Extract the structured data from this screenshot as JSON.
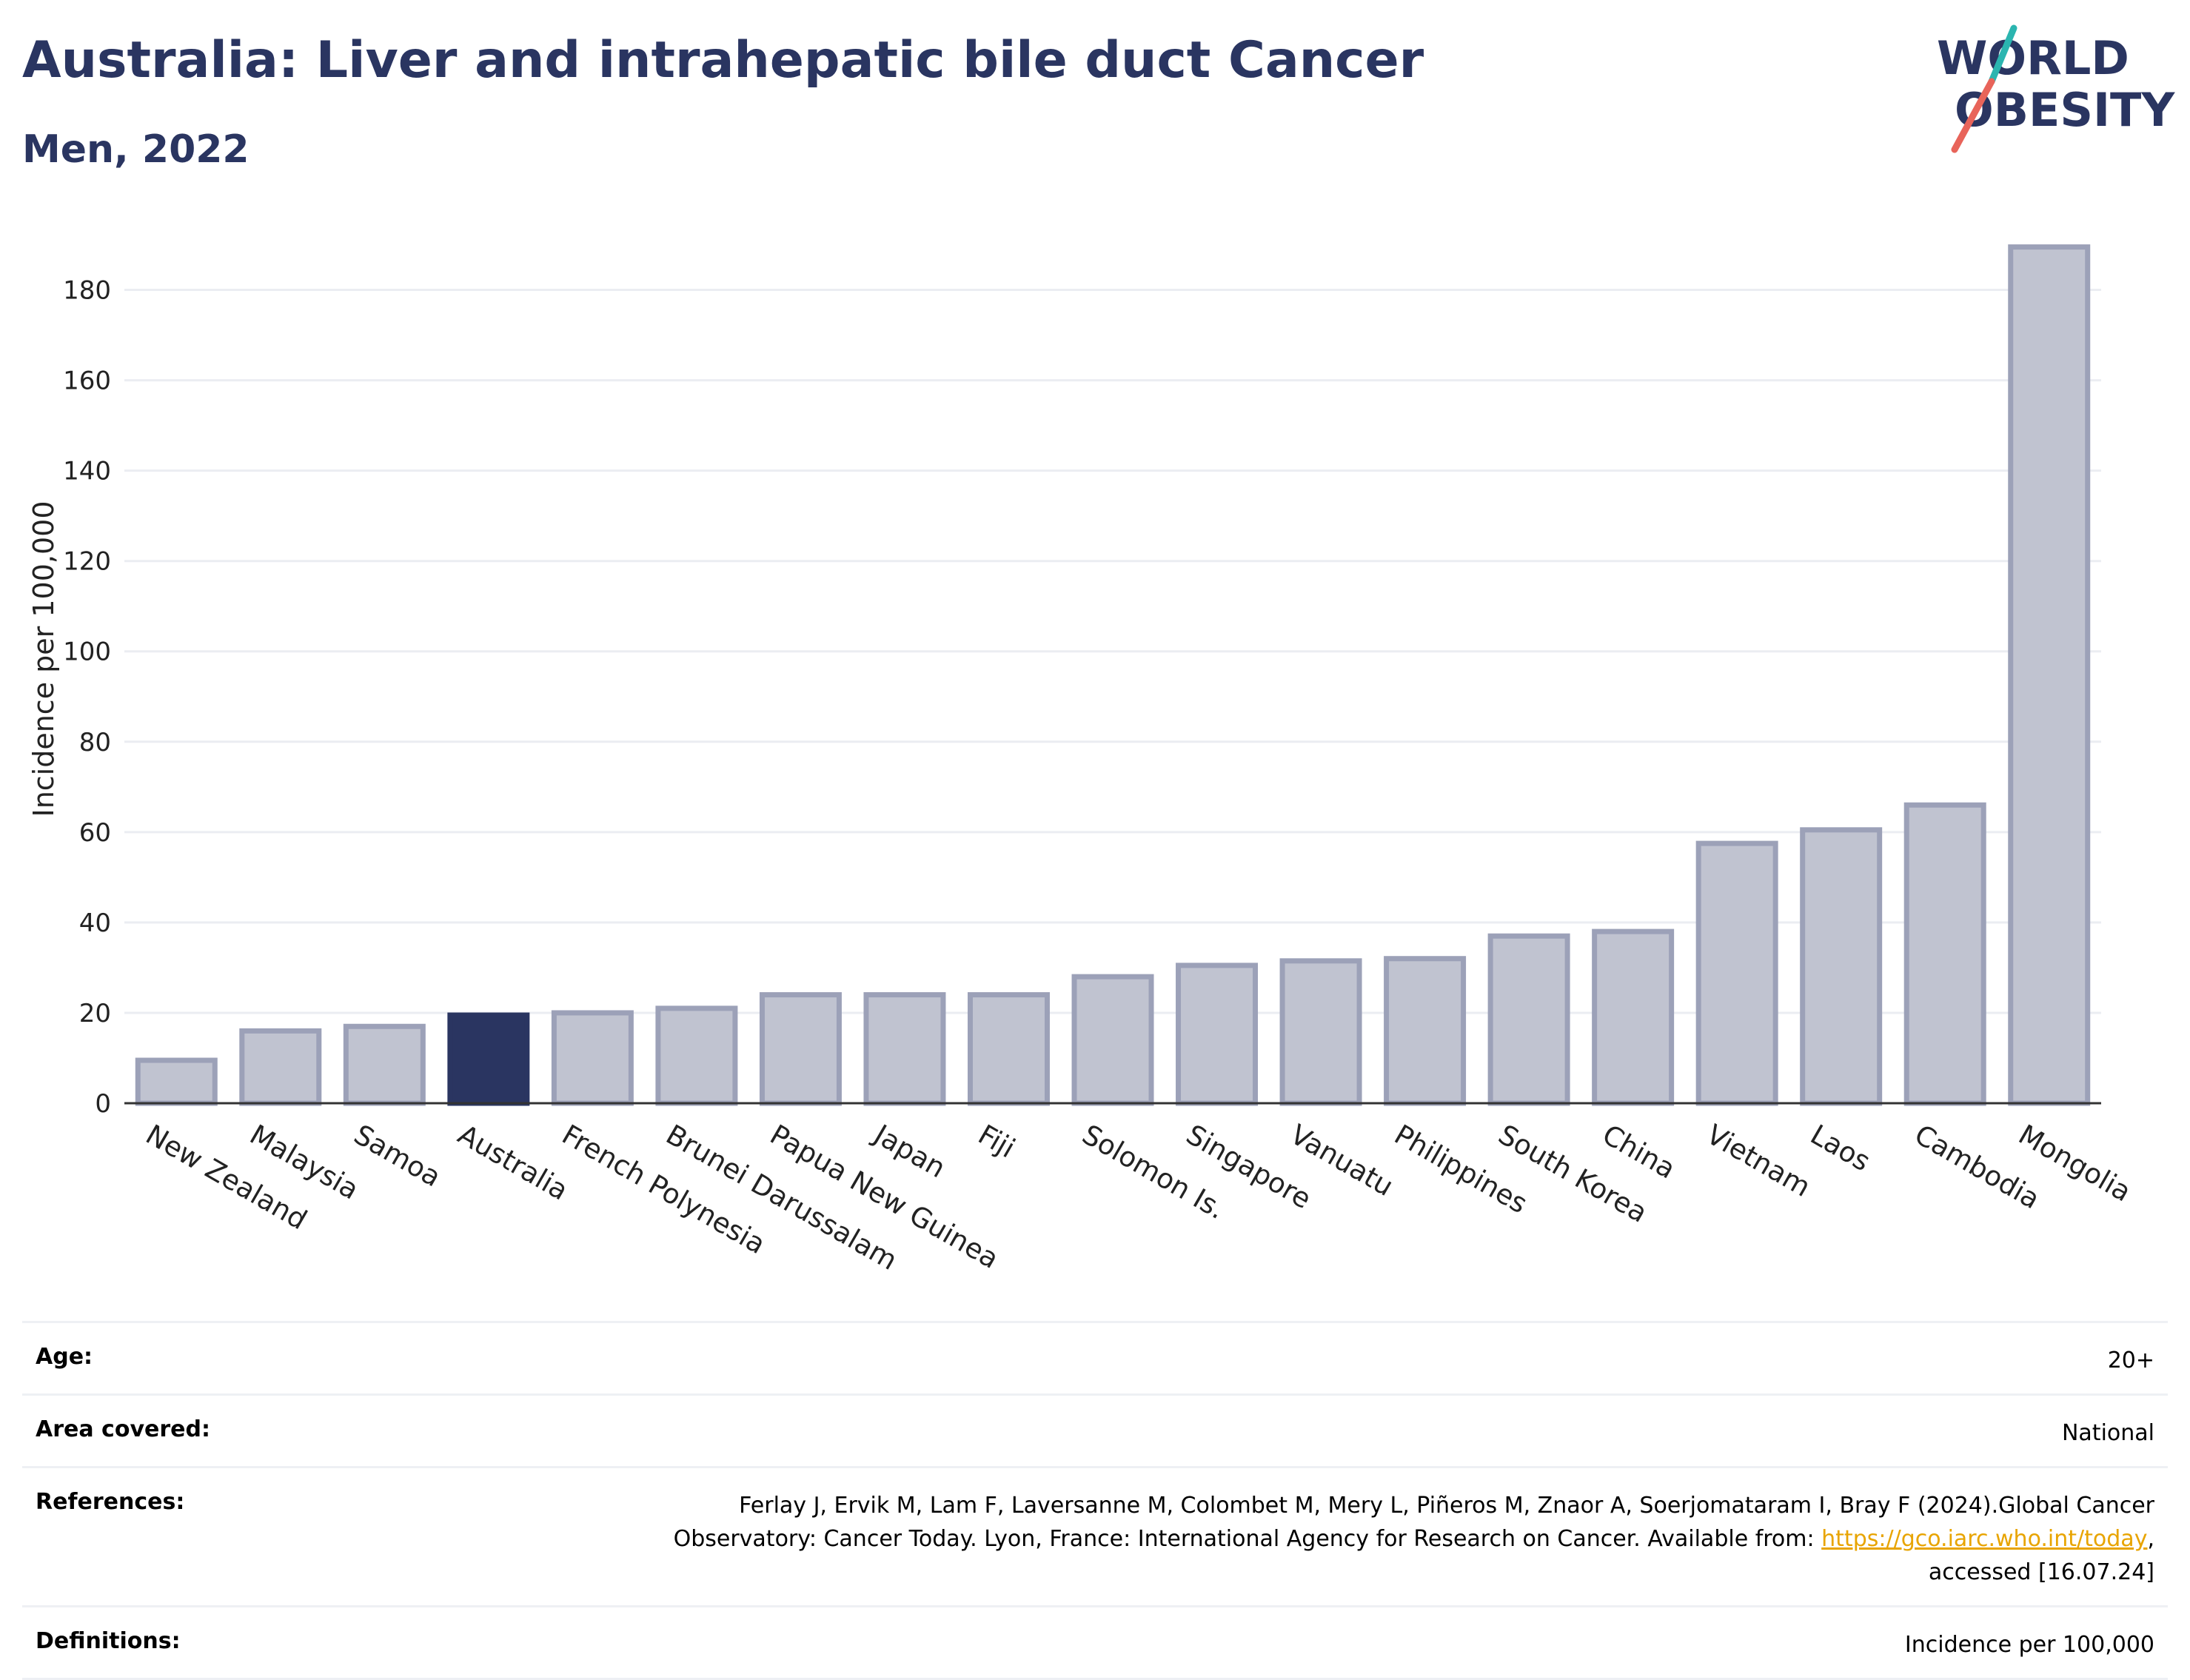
{
  "header": {
    "title": "Australia: Liver and intrahepatic bile duct Cancer",
    "subtitle": "Men, 2022"
  },
  "logo": {
    "line1": "WORLD",
    "line2": "OBESITY",
    "colors": {
      "text": "#2a3561",
      "slash_teal": "#2bb5b0",
      "slash_red": "#e8645a"
    }
  },
  "chart_data": {
    "type": "bar",
    "categories": [
      "New Zealand",
      "Malaysia",
      "Samoa",
      "Australia",
      "French Polynesia",
      "Brunei Darussalam",
      "Papua New Guinea",
      "Japan",
      "Fiji",
      "Solomon Is.",
      "Singapore",
      "Vanuatu",
      "Philippines",
      "South Korea",
      "China",
      "Vietnam",
      "Laos",
      "Cambodia",
      "Mongolia"
    ],
    "values": [
      9.5,
      16,
      17,
      19.5,
      20,
      21,
      24,
      24,
      24,
      28,
      30.5,
      31.5,
      32,
      37,
      38,
      57.5,
      60.5,
      66,
      189.5
    ],
    "highlight": "Australia",
    "xlabel": "",
    "ylabel": "Incidence per 100,000",
    "ylim": [
      0,
      195
    ],
    "yticks": [
      0,
      20,
      40,
      60,
      80,
      100,
      120,
      140,
      160,
      180
    ],
    "grid": true,
    "colors": {
      "bar": "#c0c3d0",
      "bar_edge": "#9ca1b8",
      "highlight": "#2a3561",
      "grid": "#ebedf2"
    }
  },
  "meta": {
    "age": {
      "label": "Age:",
      "value": "20+"
    },
    "area": {
      "label": "Area covered:",
      "value": "National"
    },
    "references": {
      "label": "References:",
      "text_before": "Ferlay J, Ervik M, Lam F, Laversanne M, Colombet M, Mery L, Piñeros M, Znaor A, Soerjomataram I, Bray F (2024).Global Cancer Observatory: Cancer Today. Lyon, France: International Agency for Research on Cancer. Available from: ",
      "link": "https://gco.iarc.who.int/today",
      "text_after": ", accessed [16.07.24]"
    },
    "definitions": {
      "label": "Definitions:",
      "value": "Incidence per 100,000"
    }
  }
}
